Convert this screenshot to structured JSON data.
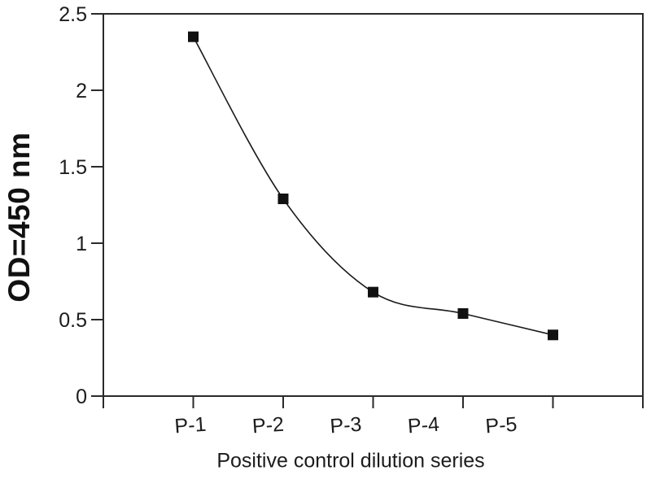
{
  "chart_data": {
    "type": "line",
    "title": "",
    "xlabel": "Positive control dilution series",
    "ylabel": "OD=450 nm",
    "categories": [
      "P-1",
      "P-2",
      "P-3",
      "P-4",
      "P-5"
    ],
    "values": [
      2.35,
      1.29,
      0.68,
      0.54,
      0.4
    ],
    "ylim": [
      0,
      2.5
    ],
    "yticks": [
      0,
      0.5,
      1,
      1.5,
      2,
      2.5
    ],
    "ytick_labels": [
      "0",
      "0.5",
      "1",
      "1.5",
      "2",
      "2.5"
    ],
    "grid": false,
    "legend": "none",
    "marker": "filled-square",
    "line_style": "smooth",
    "x_tick_label_rotation_deg": -4,
    "colors": {
      "line": "#1a1a1a",
      "marker": "#111111",
      "frame": "#2a2a2a",
      "tick": "#2a2a2a",
      "text": "#1c1c1c",
      "background": "#ffffff"
    }
  }
}
